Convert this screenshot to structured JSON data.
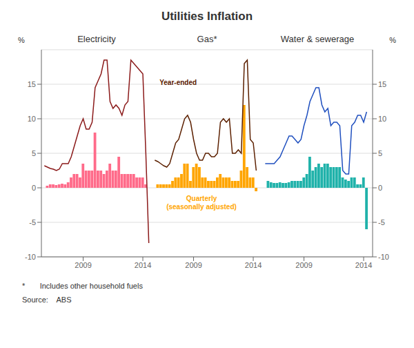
{
  "title": "Utilities Inflation",
  "annotations": [
    "*       Includes other household fuels",
    "Source:    ABS"
  ],
  "chart_data": [
    {
      "type": "bar",
      "title": "Electricity",
      "ylabel": "%",
      "xlim": [
        2005.5,
        2014.75
      ],
      "xticks": [
        2009,
        2014
      ],
      "ylim": [
        -10,
        20
      ],
      "yticks": [
        -10,
        -5,
        0,
        5,
        10,
        15
      ],
      "grid": true,
      "series": [
        {
          "type": "bar",
          "color": "#FF6B8A",
          "x": [
            2006.0,
            2006.25,
            2006.5,
            2006.75,
            2007.0,
            2007.25,
            2007.5,
            2007.75,
            2008.0,
            2008.25,
            2008.5,
            2008.75,
            2009.0,
            2009.25,
            2009.5,
            2009.75,
            2010.0,
            2010.25,
            2010.5,
            2010.75,
            2011.0,
            2011.25,
            2011.5,
            2011.75,
            2012.0,
            2012.25,
            2012.5,
            2012.75,
            2013.0,
            2013.25,
            2013.5,
            2013.75,
            2014.0,
            2014.25
          ],
          "values": [
            0.3,
            0.5,
            0.5,
            0.4,
            0.5,
            0.6,
            0.5,
            0.8,
            1.5,
            2.0,
            2.0,
            1.5,
            3.5,
            2.5,
            2.5,
            2.5,
            8.0,
            2.5,
            2.5,
            2.0,
            2.5,
            3.5,
            2.5,
            2.5,
            4.5,
            2.0,
            2.0,
            2.0,
            2.0,
            2.0,
            1.5,
            1.5,
            1.5,
            0.5
          ]
        },
        {
          "type": "line",
          "color": "#8B1A1A",
          "x": [
            2005.75,
            2006.0,
            2006.25,
            2006.5,
            2006.75,
            2007.0,
            2007.25,
            2007.5,
            2007.75,
            2008.0,
            2008.25,
            2008.5,
            2008.75,
            2009.0,
            2009.25,
            2009.5,
            2009.75,
            2010.0,
            2010.25,
            2010.5,
            2010.75,
            2011.0,
            2011.25,
            2011.5,
            2011.75,
            2012.0,
            2012.25,
            2012.5,
            2012.75,
            2013.0,
            2013.25,
            2013.5,
            2013.75,
            2014.0,
            2014.25,
            2014.5
          ],
          "values": [
            3.2,
            3.0,
            2.8,
            2.7,
            2.5,
            2.7,
            3.5,
            3.5,
            3.5,
            4.5,
            6.0,
            7.5,
            9.0,
            10.0,
            8.5,
            8.5,
            9.5,
            14.5,
            15.5,
            16.5,
            18.5,
            18.5,
            12.5,
            11.5,
            12.0,
            11.5,
            10.5,
            12.0,
            12.5,
            18.5,
            18.0,
            17.5,
            17.0,
            16.5,
            5.0,
            -8.0
          ]
        }
      ]
    },
    {
      "type": "bar",
      "title": "Gas*",
      "xlim": [
        2005.5,
        2014.75
      ],
      "xticks": [
        2009,
        2014
      ],
      "ylim": [
        -10,
        20
      ],
      "yticks": [
        -10,
        -5,
        0,
        5,
        10,
        15
      ],
      "grid": true,
      "tick_labels": "x",
      "annotations": [
        {
          "text": "Year-ended",
          "color": "#5C2000"
        },
        {
          "text": "Quarterly\n(seasonally adjusted)",
          "color": "#FFA500"
        }
      ],
      "series": [
        {
          "type": "bar",
          "color": "#FFA500",
          "x": [
            2006.0,
            2006.25,
            2006.5,
            2006.75,
            2007.0,
            2007.25,
            2007.5,
            2007.75,
            2008.0,
            2008.25,
            2008.5,
            2008.75,
            2009.0,
            2009.25,
            2009.5,
            2009.75,
            2010.0,
            2010.25,
            2010.5,
            2010.75,
            2011.0,
            2011.25,
            2011.5,
            2011.75,
            2012.0,
            2012.25,
            2012.5,
            2012.75,
            2013.0,
            2013.25,
            2013.5,
            2013.75,
            2014.0,
            2014.25
          ],
          "values": [
            0.5,
            0.5,
            0.5,
            0.5,
            0.5,
            1.0,
            1.5,
            1.5,
            2.0,
            3.5,
            3.5,
            1.0,
            3.0,
            3.5,
            3.0,
            1.5,
            1.5,
            1.0,
            1.0,
            1.0,
            1.5,
            2.0,
            1.5,
            1.5,
            1.5,
            1.0,
            1.0,
            1.0,
            2.5,
            12.0,
            3.0,
            1.5,
            1.5,
            -0.5
          ]
        },
        {
          "type": "line",
          "color": "#5C2000",
          "x": [
            2005.75,
            2006.0,
            2006.25,
            2006.5,
            2006.75,
            2007.0,
            2007.25,
            2007.5,
            2007.75,
            2008.0,
            2008.25,
            2008.5,
            2008.75,
            2009.0,
            2009.25,
            2009.5,
            2009.75,
            2010.0,
            2010.25,
            2010.5,
            2010.75,
            2011.0,
            2011.25,
            2011.5,
            2011.75,
            2012.0,
            2012.25,
            2012.5,
            2012.75,
            2013.0,
            2013.25,
            2013.5,
            2013.75,
            2014.0,
            2014.25
          ],
          "values": [
            4.0,
            3.8,
            3.5,
            3.2,
            3.0,
            3.5,
            5.0,
            6.5,
            7.0,
            8.5,
            10.0,
            10.5,
            9.5,
            7.0,
            5.0,
            4.0,
            4.0,
            5.0,
            5.0,
            4.5,
            4.5,
            5.0,
            9.5,
            10.0,
            9.5,
            10.0,
            5.0,
            5.0,
            5.5,
            5.0,
            18.0,
            18.5,
            7.0,
            6.5,
            2.5
          ]
        }
      ]
    },
    {
      "type": "bar",
      "title": "Water & sewerage",
      "y2label": "%",
      "xlim": [
        2005.5,
        2014.75
      ],
      "xticks": [
        2009,
        2014
      ],
      "ylim": [
        -10,
        20
      ],
      "yticks": [
        -10,
        -5,
        0,
        5,
        10,
        15
      ],
      "y2lim": [
        -10,
        20
      ],
      "y2ticks": [
        -10,
        -5,
        0,
        5,
        10,
        15
      ],
      "grid": true,
      "tick_labels": "x",
      "series": [
        {
          "type": "bar",
          "color": "#20B2AA",
          "x": [
            2006.0,
            2006.25,
            2006.5,
            2006.75,
            2007.0,
            2007.25,
            2007.5,
            2007.75,
            2008.0,
            2008.25,
            2008.5,
            2008.75,
            2009.0,
            2009.25,
            2009.5,
            2009.75,
            2010.0,
            2010.25,
            2010.5,
            2010.75,
            2011.0,
            2011.25,
            2011.5,
            2011.75,
            2012.0,
            2012.25,
            2012.5,
            2012.75,
            2013.0,
            2013.25,
            2013.5,
            2013.75,
            2014.0,
            2014.25
          ],
          "values": [
            1.0,
            0.8,
            0.7,
            0.7,
            0.8,
            0.7,
            0.7,
            0.8,
            1.0,
            1.0,
            1.0,
            1.0,
            1.5,
            2.0,
            4.5,
            2.5,
            3.0,
            3.5,
            3.0,
            3.5,
            3.5,
            3.0,
            3.0,
            3.0,
            3.0,
            1.5,
            1.2,
            1.0,
            1.5,
            1.5,
            0.5,
            0.5,
            1.5,
            -6.0
          ]
        },
        {
          "type": "line",
          "color": "#1F4FBF",
          "x": [
            2005.75,
            2006.0,
            2006.25,
            2006.5,
            2006.75,
            2007.0,
            2007.25,
            2007.5,
            2007.75,
            2008.0,
            2008.25,
            2008.5,
            2008.75,
            2009.0,
            2009.25,
            2009.5,
            2009.75,
            2010.0,
            2010.25,
            2010.5,
            2010.75,
            2011.0,
            2011.25,
            2011.5,
            2011.75,
            2012.0,
            2012.25,
            2012.5,
            2012.75,
            2013.0,
            2013.25,
            2013.5,
            2013.75,
            2014.0,
            2014.25
          ],
          "values": [
            3.5,
            3.5,
            3.5,
            3.5,
            4.0,
            4.5,
            5.5,
            6.5,
            7.5,
            7.5,
            7.0,
            6.5,
            7.0,
            9.0,
            10.5,
            12.5,
            13.5,
            14.5,
            14.5,
            12.0,
            11.0,
            11.5,
            9.0,
            9.5,
            9.5,
            9.0,
            2.5,
            2.0,
            2.0,
            9.0,
            9.5,
            10.5,
            10.5,
            9.5,
            11.0
          ]
        }
      ]
    }
  ]
}
